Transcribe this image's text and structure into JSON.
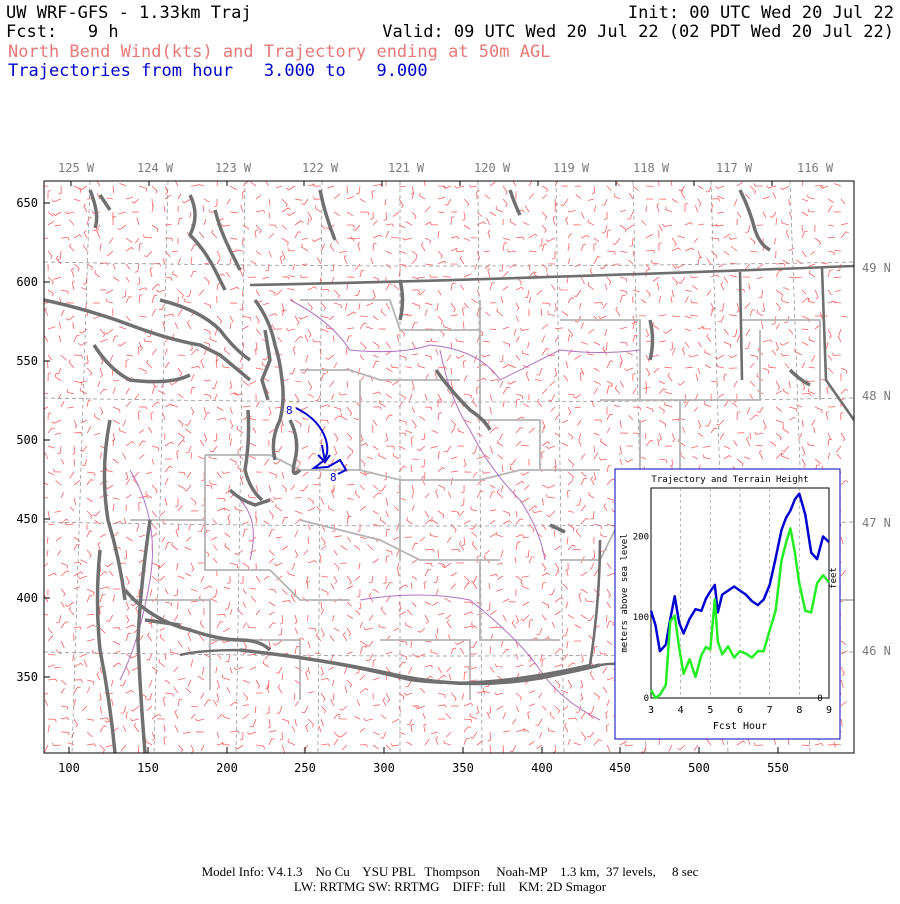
{
  "header": {
    "title": "UW WRF-GFS - 1.33km Traj",
    "init": "Init: 00 UTC Wed 20 Jul 22",
    "fcst": "Fcst:   9 h",
    "valid": "Valid: 09 UTC Wed 20 Jul 22 (02 PDT Wed 20 Jul 22)",
    "subtitle": "North Bend Wind(kts) and Trajectory ending at 50m AGL",
    "traj_range": "Trajectories from hour   3.000 to   9.000"
  },
  "colors": {
    "subtitle": "#e87878",
    "traj_range": "#0000cc",
    "wind_barbs": "#ff6060",
    "coast": "#707070",
    "borders": "#b0b0b0",
    "rivers": "#b070c0",
    "trajectory": "#0000d0",
    "terrain": "#22ee22"
  },
  "map": {
    "lon_labels": [
      "125 W",
      "124 W",
      "123 W",
      "122 W",
      "121 W",
      "120 W",
      "119 W",
      "118 W",
      "117 W",
      "116 W"
    ],
    "lat_labels": [
      "49 N",
      "48 N",
      "47 N",
      "46 N"
    ],
    "y_ticks": [
      "650",
      "600",
      "550",
      "500",
      "450",
      "400",
      "350"
    ],
    "x_ticks": [
      "100",
      "150",
      "200",
      "250",
      "300",
      "350",
      "400",
      "450",
      "500",
      "550"
    ],
    "traj_markers": [
      "8",
      "8"
    ]
  },
  "inset": {
    "title": "Trajectory and Terrain Height",
    "ylabel": "meters above sea level",
    "ylabel_right": "feet",
    "xlabel": "Fcst Hour",
    "x_ticks": [
      "3",
      "4",
      "5",
      "6",
      "7",
      "8",
      "9"
    ],
    "y_ticks": [
      "0",
      "100",
      "200"
    ],
    "y_ticks_right": [
      "0"
    ]
  },
  "chart_data": {
    "type": "line",
    "title": "Trajectory and Terrain Height",
    "xlabel": "Fcst Hour",
    "ylabel": "meters above sea level",
    "xlim": [
      3,
      9
    ],
    "ylim": [
      0,
      260
    ],
    "series": [
      {
        "color": "#0000d0",
        "x": [
          3.0,
          3.15,
          3.3,
          3.5,
          3.65,
          3.8,
          3.95,
          4.1,
          4.3,
          4.5,
          4.7,
          4.85,
          5.0,
          5.15,
          5.25,
          5.4,
          5.6,
          5.8,
          6.0,
          6.2,
          6.4,
          6.6,
          6.8,
          7.0,
          7.2,
          7.4,
          7.55,
          7.7,
          7.85,
          8.0,
          8.2,
          8.4,
          8.6,
          8.8,
          9.0
        ],
        "y": [
          108,
          90,
          58,
          66,
          98,
          126,
          93,
          80,
          98,
          110,
          108,
          123,
          132,
          140,
          106,
          128,
          133,
          138,
          133,
          128,
          120,
          115,
          122,
          140,
          173,
          208,
          223,
          232,
          246,
          253,
          227,
          180,
          172,
          200,
          193
        ]
      },
      {
        "color": "#22ee22",
        "x": [
          3.0,
          3.15,
          3.3,
          3.5,
          3.65,
          3.8,
          3.95,
          4.1,
          4.3,
          4.5,
          4.7,
          4.85,
          5.0,
          5.15,
          5.25,
          5.4,
          5.6,
          5.8,
          6.0,
          6.2,
          6.4,
          6.6,
          6.8,
          7.0,
          7.2,
          7.4,
          7.55,
          7.7,
          7.85,
          8.0,
          8.2,
          8.4,
          8.6,
          8.8,
          9.0
        ],
        "y": [
          10,
          0,
          4,
          16,
          95,
          102,
          62,
          30,
          48,
          26,
          53,
          63,
          60,
          122,
          70,
          54,
          64,
          50,
          58,
          55,
          50,
          58,
          58,
          84,
          108,
          170,
          192,
          210,
          180,
          142,
          108,
          106,
          142,
          152,
          143
        ]
      }
    ]
  },
  "footer": {
    "line1": "Model Info: V4.1.3    No Cu    YSU PBL   Thompson     Noah-MP    1.3 km,  37 levels,     8 sec",
    "line2": "LW: RRTMG SW: RRTMG    DIFF: full    KM: 2D Smagor"
  }
}
